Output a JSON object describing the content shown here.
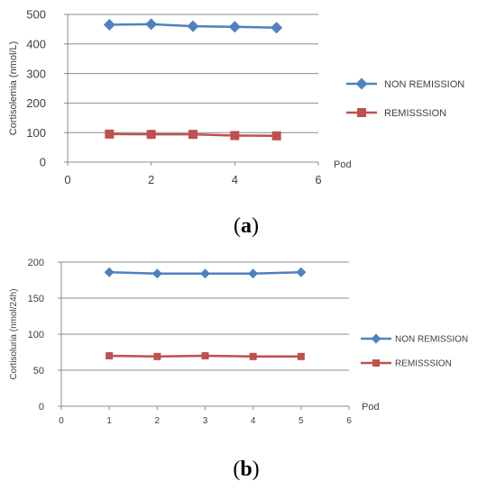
{
  "colors": {
    "non_remission": "#4f81bd",
    "remission": "#c0504d",
    "grid": "#8c8c8c",
    "axis": "#8c8c8c",
    "text": "#404040"
  },
  "chart_data": [
    {
      "type": "line",
      "panel_open": "(",
      "panel_letter": "a",
      "panel_close": ")",
      "ylabel": "Cortisolemia (nmol/L)",
      "xlabel": "Pod",
      "xlim": [
        0,
        6
      ],
      "ylim": [
        0,
        500
      ],
      "xticks": [
        "0",
        "2",
        "4",
        "6"
      ],
      "xtick_values": [
        0,
        2,
        4,
        6
      ],
      "yticks": [
        "0",
        "100",
        "200",
        "300",
        "400",
        "500"
      ],
      "ytick_values": [
        0,
        100,
        200,
        300,
        400,
        500
      ],
      "grid": "horizontal",
      "legend_position": "right",
      "series": [
        {
          "name": "NON REMISSION",
          "marker": "diamond",
          "x": [
            1,
            2,
            3,
            4,
            5
          ],
          "values": [
            465,
            467,
            460,
            458,
            455
          ]
        },
        {
          "name": "REMISSSION",
          "marker": "square",
          "x": [
            1,
            2,
            3,
            4,
            5
          ],
          "values": [
            95,
            94,
            94,
            90,
            89
          ]
        }
      ]
    },
    {
      "type": "line",
      "panel_open": "(",
      "panel_letter": "b",
      "panel_close": ")",
      "ylabel": "Cortisoluria (nmol/24h)",
      "xlabel": "Pod",
      "xlim": [
        0,
        6
      ],
      "ylim": [
        0,
        200
      ],
      "xticks": [
        "0",
        "1",
        "2",
        "3",
        "4",
        "5",
        "6"
      ],
      "xtick_values": [
        0,
        1,
        2,
        3,
        4,
        5,
        6
      ],
      "yticks": [
        "0",
        "50",
        "100",
        "150",
        "200"
      ],
      "ytick_values": [
        0,
        50,
        100,
        150,
        200
      ],
      "grid": "horizontal",
      "legend_position": "right",
      "series": [
        {
          "name": "NON REMISSION",
          "marker": "diamond",
          "x": [
            1,
            2,
            3,
            4,
            5
          ],
          "values": [
            186,
            184,
            184,
            184,
            186
          ]
        },
        {
          "name": "REMISSSION",
          "marker": "square",
          "x": [
            1,
            2,
            3,
            4,
            5
          ],
          "values": [
            70,
            69,
            70,
            69,
            69
          ]
        }
      ]
    }
  ]
}
